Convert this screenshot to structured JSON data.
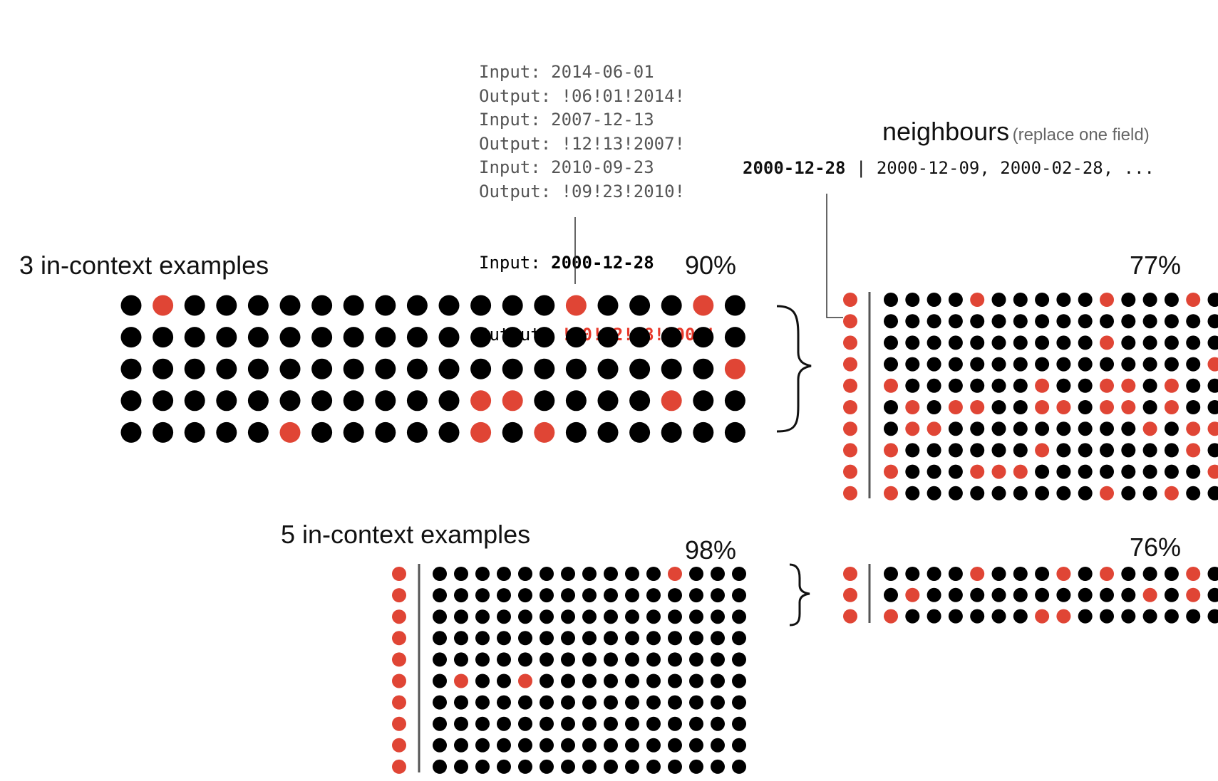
{
  "prompt": {
    "lines": [
      {
        "key": "Input:",
        "value": "2014-06-01"
      },
      {
        "key": "Output:",
        "value": "!06!01!2014!"
      },
      {
        "key": "Input:",
        "value": "2007-12-13"
      },
      {
        "key": "Output:",
        "value": "!12!13!2007!"
      },
      {
        "key": "Input:",
        "value": "2010-09-23"
      },
      {
        "key": "Output:",
        "value": "!09!23!2010!"
      }
    ],
    "query_input_key": "Input:",
    "query_input_value": "2000-12-28",
    "query_output_key": "Output:",
    "query_output_value": "!00!12!28!2000!"
  },
  "neighbours": {
    "title": "neighbours",
    "subtitle": "(replace one field)",
    "base": "2000-12-28",
    "separator": " | ",
    "list": "2000-12-09, 2000-02-28, ..."
  },
  "panels": {
    "three": {
      "label": "3 in-context examples",
      "accuracy": "90%",
      "neighbour_accuracy": "77%"
    },
    "five": {
      "label": "5 in-context examples",
      "accuracy": "98%",
      "neighbour_accuracy": "76%"
    }
  },
  "colors": {
    "correct": "#000000",
    "incorrect": "#e04535"
  },
  "chart_data": {
    "type": "dot-grid",
    "three_main": [
      "01000000000000100010",
      "00000000000000000000",
      "00000000000000000001",
      "00000000000110000100",
      "00000100000101000000"
    ],
    "three_neighbours": {
      "left": "1111111111",
      "grid": [
        "0000100000100010",
        "0000000000000000",
        "0000000000100000",
        "0000000000000001",
        "1003000100110100",
        "0101100110110100",
        "0110000000001011",
        "1003000100000010",
        "1003111000000001",
        "1003000000100100"
      ]
    },
    "five_main": {
      "left": "1111111111",
      "grid": [
        "000000000001000000000",
        "000000000000000000000",
        "000000000000000000000",
        "000000000000000000000",
        "000000000000000000000",
        "0100100000000000000000",
        "000000000000000000000",
        "000000000000000000000",
        "000000000000000000000",
        "000000000000000000000"
      ]
    },
    "five_neighbours": {
      "left": "111",
      "grid": [
        "0000100010100010",
        "0100000000001010",
        "1003000110000000"
      ]
    }
  }
}
